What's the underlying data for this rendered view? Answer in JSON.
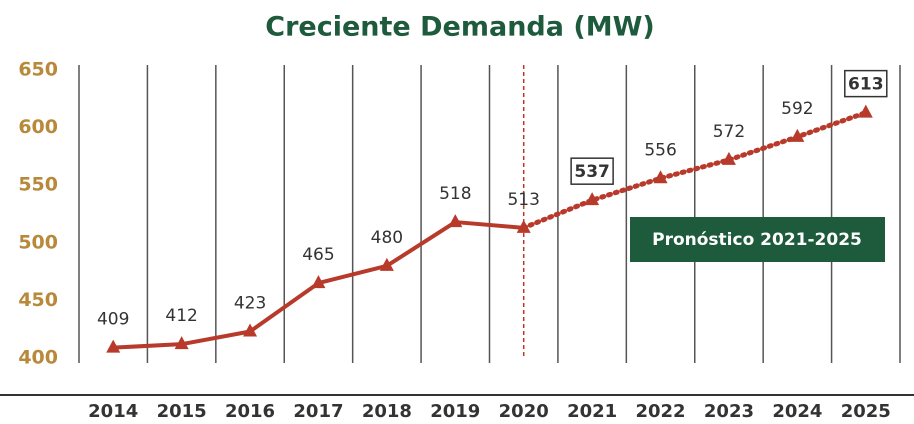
{
  "chart_data": {
    "type": "line",
    "title": "Creciente Demanda (MW)",
    "categories": [
      "2014",
      "2015",
      "2016",
      "2017",
      "2018",
      "2019",
      "2020",
      "2021",
      "2022",
      "2023",
      "2024",
      "2025"
    ],
    "series": [
      {
        "name": "Demanda",
        "color": "#b83a2a",
        "values": [
          409,
          412,
          423,
          465,
          480,
          518,
          513,
          537,
          556,
          572,
          592,
          613
        ]
      }
    ],
    "forecast_from": "2020",
    "boxed_labels": [
      "2021",
      "2025"
    ],
    "annotation": "Pronóstico 2021-2025",
    "ylim": [
      400,
      650
    ],
    "yticks": [
      400,
      450,
      500,
      550,
      600,
      650
    ],
    "grid": true
  }
}
